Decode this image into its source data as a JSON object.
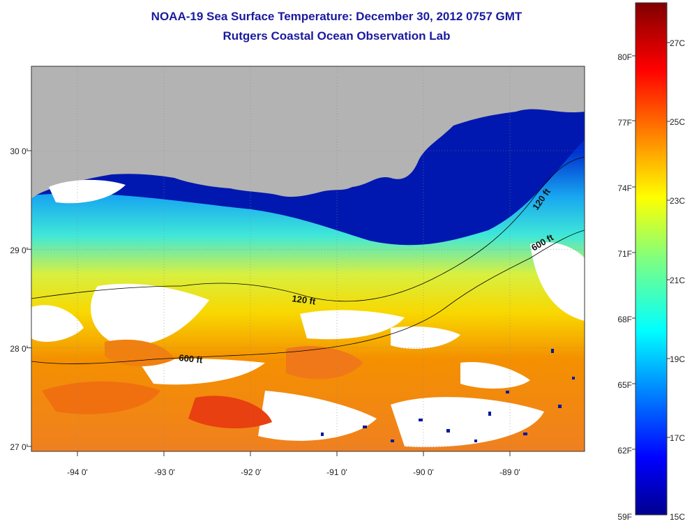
{
  "title": {
    "line1": "NOAA-19 Sea Surface Temperature:  December 30, 2012 0757 GMT",
    "line2": "Rutgers Coastal Ocean Observation Lab"
  },
  "map": {
    "lon_range": [
      -94.5,
      -88.0
    ],
    "lat_range": [
      26.95,
      28.95
    ],
    "lat_ticks": [
      {
        "value": 30.0,
        "label": "30 0'"
      },
      {
        "value": 29.0,
        "label": "29 0'"
      },
      {
        "value": 28.0,
        "label": "28 0'"
      },
      {
        "value": 27.0,
        "label": "27 0'"
      }
    ],
    "lon_ticks": [
      {
        "value": -94,
        "label": "-94 0'"
      },
      {
        "value": -93,
        "label": "-93 0'"
      },
      {
        "value": -92,
        "label": "-92 0'"
      },
      {
        "value": -91,
        "label": "-91 0'"
      },
      {
        "value": -90,
        "label": "-90 0'"
      },
      {
        "value": -89,
        "label": "-89 0'"
      }
    ],
    "land_color": "#b3b3b3",
    "cloud_color": "#ffffff",
    "contours": [
      {
        "name": "contour-120ft",
        "label": "120 ft"
      },
      {
        "name": "contour-600ft",
        "label": "600 ft"
      }
    ],
    "contour_labels": [
      {
        "text": "120 ft"
      },
      {
        "text": "600 ft"
      },
      {
        "text": "600 ft"
      },
      {
        "text": "120 ft"
      }
    ]
  },
  "colorbar": {
    "min_c": 15,
    "max_c": 28,
    "colormap": "jet",
    "celsius_labels": [
      "27C",
      "25C",
      "23C",
      "21C",
      "19C",
      "17C",
      "15C"
    ],
    "fahrenheit_labels": [
      "80F",
      "77F",
      "74F",
      "71F",
      "68F",
      "65F",
      "62F",
      "59F"
    ]
  }
}
